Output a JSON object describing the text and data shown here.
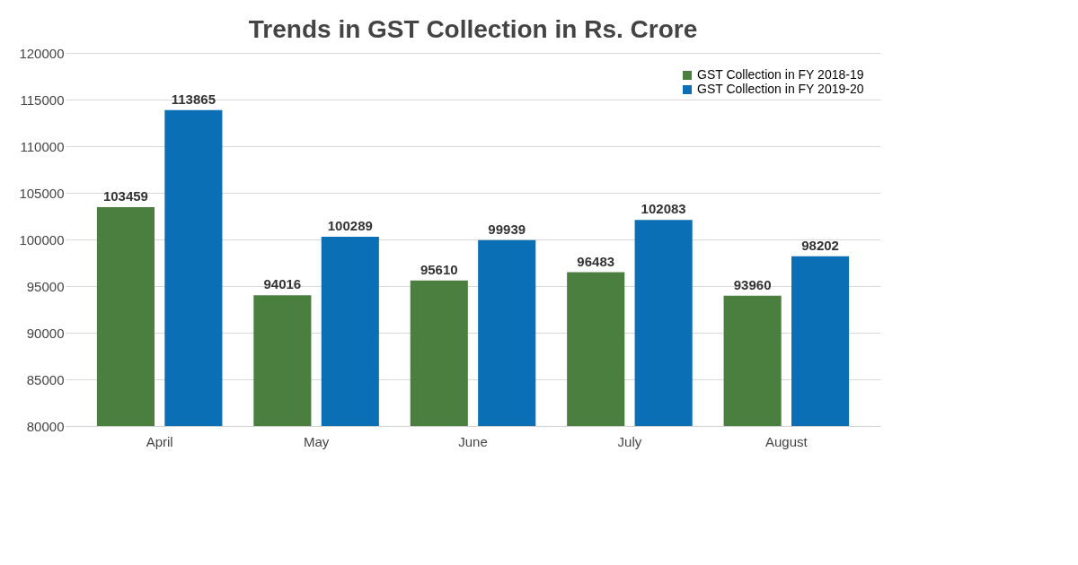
{
  "chart_data": {
    "type": "bar",
    "title": "Trends in GST Collection in Rs. Crore",
    "categories": [
      "April",
      "May",
      "June",
      "July",
      "August"
    ],
    "series": [
      {
        "name": "GST Collection in FY 2018-19",
        "color": "#4a7f3f",
        "values": [
          103459,
          94016,
          95610,
          96483,
          93960
        ]
      },
      {
        "name": "GST Collection in FY 2019-20",
        "color": "#0a6fb4",
        "values": [
          113865,
          100289,
          99939,
          102083,
          98202
        ]
      }
    ],
    "ylim": [
      80000,
      120000
    ],
    "yticks": [
      80000,
      85000,
      90000,
      95000,
      100000,
      105000,
      110000,
      115000,
      120000
    ],
    "grid": "y",
    "legend": "top right",
    "data_labels": true
  }
}
